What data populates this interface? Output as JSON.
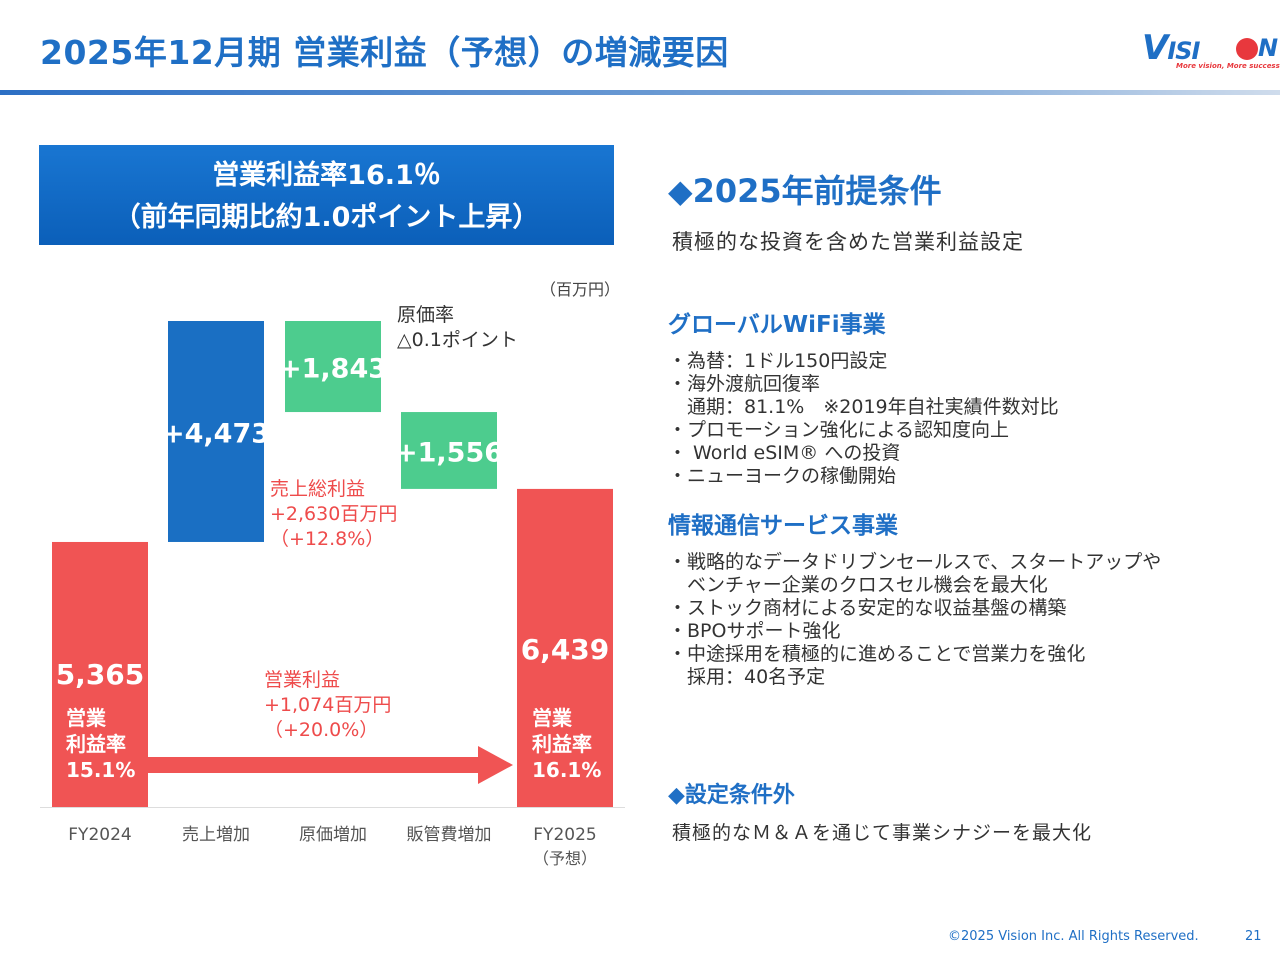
{
  "header": {
    "title": "2025年12月期 営業利益（予想）の増減要因",
    "logo_text": "VISION",
    "logo_tagline": "More vision, More success."
  },
  "banner": {
    "line1": "営業利益率16.1％",
    "line2": "（前年同期比約1.0ポイント上昇）"
  },
  "unit_label": "（百万円）",
  "annotations": {
    "cost_rate": [
      "原価率",
      "△0.1ポイント"
    ],
    "gross_profit": [
      "売上総利益",
      "+2,630百万円",
      "（+12.8%）"
    ],
    "operating_profit": [
      "営業利益",
      "+1,074百万円",
      "（+20.0%）"
    ],
    "margin_2024": [
      "営業",
      "利益率",
      "15.1%"
    ],
    "margin_2025": [
      "営業",
      "利益率",
      "16.1%"
    ]
  },
  "chart_data": {
    "type": "bar",
    "subtype": "waterfall",
    "unit": "百万円",
    "categories": [
      "FY2024",
      "売上増加",
      "原価増加",
      "販管費増加",
      "FY2025"
    ],
    "category_sublabels": [
      "",
      "",
      "",
      "",
      "（予想）"
    ],
    "values": [
      5365,
      4473,
      -1843,
      -1556,
      6439
    ],
    "labels": [
      "5,365",
      "+4,473",
      "+1,843",
      "+1,556",
      "6,439"
    ],
    "kinds": [
      "total",
      "increase",
      "decrease",
      "decrease",
      "total"
    ],
    "colors": {
      "total": "#f05454",
      "increase": "#1a6fc3",
      "decrease": "#4dcc8e"
    },
    "arrow_color": "#f05454"
  },
  "right": {
    "heading1": "◆2025年前提条件",
    "intro": "積極的な投資を含めた営業利益設定",
    "section1": {
      "title": "グローバルWiFi事業",
      "items": [
        "・為替：1ドル150円設定",
        "・海外渡航回復率",
        "　通期：81.1%　※2019年自社実績件数対比",
        "・プロモーション強化による認知度向上",
        "・ World eSIM® への投資",
        "・ニューヨークの稼働開始"
      ]
    },
    "section2": {
      "title": "情報通信サービス事業",
      "items": [
        "・戦略的なデータドリブンセールスで、スタートアップや",
        "　ベンチャー企業のクロスセル機会を最大化",
        "・ストック商材による安定的な収益基盤の構築",
        "・BPOサポート強化",
        "・中途採用を積極的に進めることで営業力を強化",
        "　採用：40名予定"
      ]
    },
    "heading2": "◆設定条件外",
    "outro": "積極的なＭ＆Ａを通じて事業シナジーを最大化"
  },
  "footer": {
    "copyright": "©2025 Vision Inc. All Rights Reserved.",
    "page": "21"
  }
}
